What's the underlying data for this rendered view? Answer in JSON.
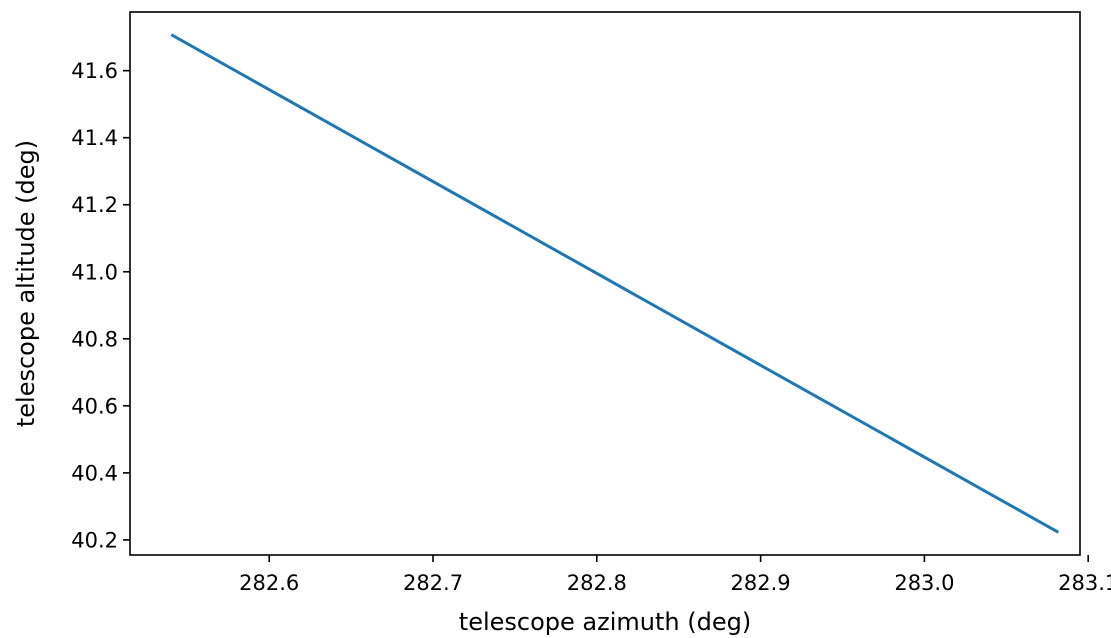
{
  "chart_data": {
    "type": "line",
    "title": "",
    "xlabel": "telescope azimuth (deg)",
    "ylabel": "telescope altitude (deg)",
    "xlim": [
      282.515,
      283.095
    ],
    "ylim": [
      40.155,
      41.775
    ],
    "xticks": [
      282.6,
      282.7,
      282.8,
      282.9,
      283.0,
      283.1
    ],
    "xtick_labels": [
      "282.6",
      "282.7",
      "282.8",
      "282.9",
      "283.0",
      "283.1"
    ],
    "yticks": [
      40.2,
      40.4,
      40.6,
      40.8,
      41.0,
      41.2,
      41.4,
      41.6
    ],
    "ytick_labels": [
      "40.2",
      "40.4",
      "40.6",
      "40.8",
      "41.0",
      "41.2",
      "41.4",
      "41.6"
    ],
    "grid": false,
    "series": [
      {
        "color": "#1f77b4",
        "points": [
          [
            282.541,
            41.705
          ],
          [
            283.081,
            40.225
          ]
        ]
      }
    ]
  }
}
